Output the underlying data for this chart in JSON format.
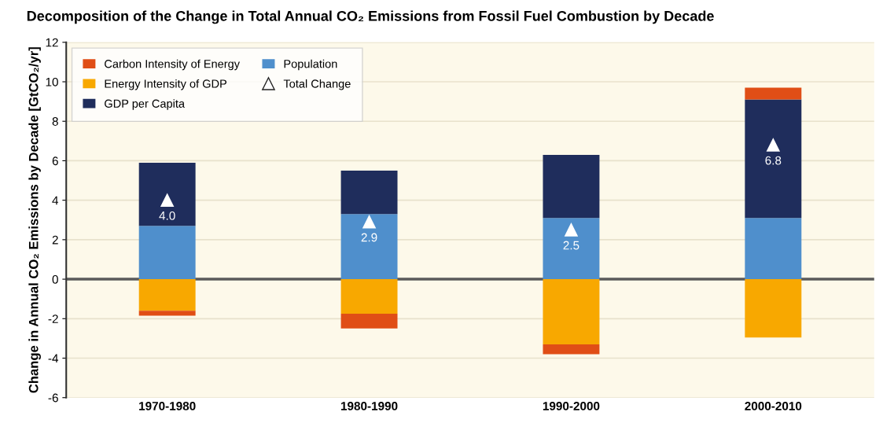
{
  "chart_data": {
    "type": "bar",
    "stacked": true,
    "title": "Decomposition of the Change in Total Annual CO₂ Emissions from Fossil Fuel Combustion by Decade",
    "ylabel": "Change in Annual CO₂ Emissions by Decade [GtCO₂/yr]",
    "categories": [
      "1970-1980",
      "1980-1990",
      "1990-2000",
      "2000-2010"
    ],
    "series": [
      {
        "name": "Population",
        "color": "#4f8fcc",
        "values": [
          2.7,
          3.3,
          3.1,
          3.1
        ]
      },
      {
        "name": "GDP per Capita",
        "color": "#1f2d5c",
        "values": [
          3.2,
          2.2,
          3.2,
          6.0
        ]
      },
      {
        "name": "Energy Intensity of GDP",
        "color": "#f8a800",
        "values": [
          -1.6,
          -1.75,
          -3.3,
          -2.95
        ]
      },
      {
        "name": "Carbon Intensity of Energy",
        "color": "#e04e16",
        "values": [
          -0.25,
          -0.75,
          -0.5,
          0.6
        ]
      },
      {
        "name": "Total Change",
        "type": "scatter",
        "color": "#ffffff",
        "values": [
          4.0,
          2.9,
          2.5,
          6.8
        ],
        "value_labels": [
          "4.0",
          "2.9",
          "2.5",
          "6.8"
        ]
      }
    ],
    "marker": "triangle",
    "ylim": [
      -6,
      12
    ],
    "yticks": [
      -6,
      -4,
      -2,
      0,
      2,
      4,
      6,
      8,
      10,
      12
    ],
    "ref_lines": [
      {
        "axis": "y",
        "value": 0,
        "color": "#5a5a5a"
      }
    ],
    "grid": "y",
    "legend": "top left"
  }
}
